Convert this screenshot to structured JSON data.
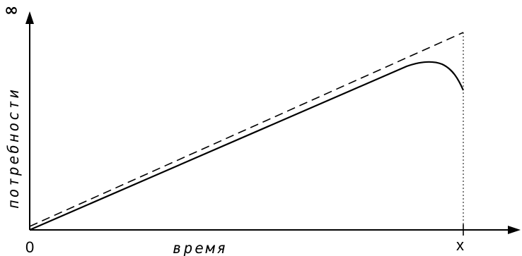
{
  "diagram": {
    "x_axis_label": "время",
    "y_axis_label": "потребности",
    "origin_label": "0",
    "y_axis_top_label": "∞",
    "x_axis_marker_label": "x"
  }
}
